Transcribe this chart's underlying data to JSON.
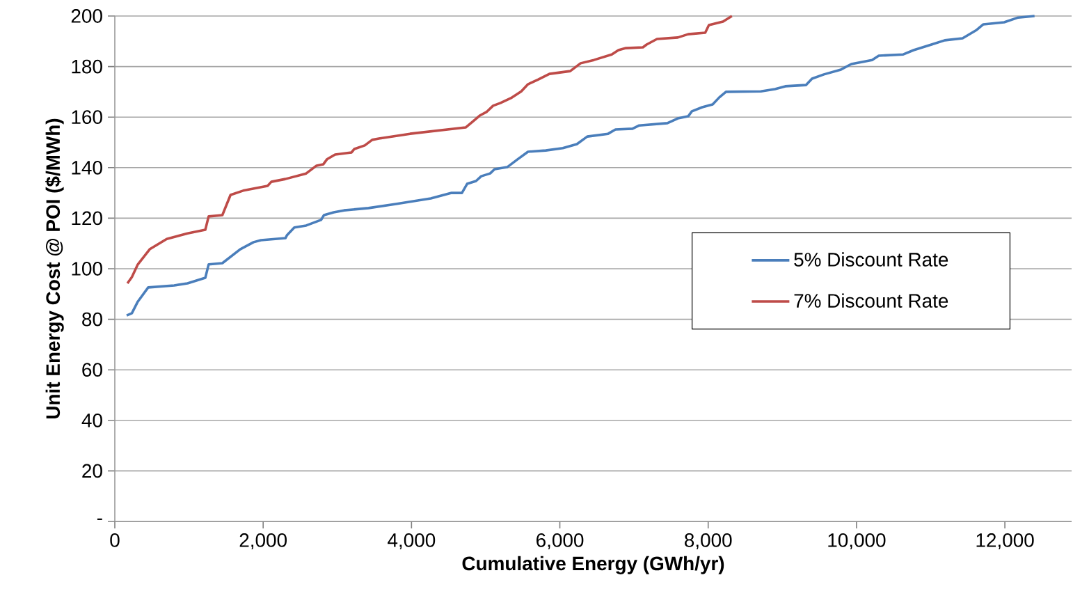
{
  "chart_data": {
    "type": "line",
    "xlabel": "Cumulative Energy (GWh/yr)",
    "ylabel": "Unit Energy Cost @ POI ($/MWh)",
    "xlim": [
      0,
      12900
    ],
    "ylim": [
      0,
      200
    ],
    "xticks": [
      {
        "value": 0,
        "label": "0"
      },
      {
        "value": 2000,
        "label": "2,000"
      },
      {
        "value": 4000,
        "label": "4,000"
      },
      {
        "value": 6000,
        "label": "6,000"
      },
      {
        "value": 8000,
        "label": "8,000"
      },
      {
        "value": 10000,
        "label": "10,000"
      },
      {
        "value": 12000,
        "label": "12,000"
      }
    ],
    "yticks": [
      {
        "value": 0,
        "label": "-"
      },
      20,
      40,
      60,
      80,
      100,
      120,
      140,
      160,
      180,
      200
    ],
    "grid": "y",
    "legend": "right",
    "marker": "none",
    "line_style": "solid",
    "series": [
      {
        "name": "5% Discount Rate",
        "color": "#4a7ebb",
        "x": [
          160,
          230,
          310,
          450,
          800,
          980,
          1220,
          1265,
          1450,
          1690,
          1870,
          1970,
          2300,
          2320,
          2420,
          2580,
          2780,
          2820,
          2950,
          3090,
          3420,
          3790,
          4260,
          4540,
          4680,
          4750,
          4870,
          4940,
          5060,
          5120,
          5290,
          5430,
          5570,
          5810,
          6040,
          6230,
          6370,
          6650,
          6750,
          6980,
          7070,
          7450,
          7590,
          7730,
          7780,
          7920,
          8060,
          8150,
          8240,
          8710,
          8900,
          9040,
          9320,
          9400,
          9560,
          9790,
          9930,
          10210,
          10300,
          10630,
          10770,
          11010,
          11190,
          11430,
          11620,
          11710,
          11990,
          12180,
          12400
        ],
        "values": [
          81.5,
          82.4,
          87,
          92.6,
          93.4,
          94.2,
          96.4,
          101.7,
          102.2,
          107.7,
          110.5,
          111.3,
          112.1,
          113.2,
          116.3,
          117.1,
          119.3,
          121.2,
          122.3,
          123.1,
          124,
          125.6,
          127.8,
          130,
          130,
          133.6,
          134.7,
          136.6,
          137.7,
          139.4,
          140.2,
          143.3,
          146.3,
          146.8,
          147.7,
          149.3,
          152.3,
          153.4,
          155.1,
          155.4,
          156.7,
          157.6,
          159.5,
          160.3,
          162.3,
          163.9,
          165,
          167.8,
          170,
          170.2,
          171.1,
          172.2,
          172.7,
          175.2,
          176.9,
          178.8,
          181,
          182.6,
          184.3,
          184.8,
          186.5,
          188.7,
          190.4,
          191.2,
          194.5,
          196.7,
          197.5,
          199.4,
          200
        ]
      },
      {
        "name": "7% Discount Rate",
        "color": "#be4b48",
        "x": [
          170,
          230,
          310,
          470,
          700,
          980,
          1220,
          1265,
          1450,
          1560,
          1730,
          2060,
          2110,
          2300,
          2580,
          2720,
          2810,
          2860,
          2970,
          3190,
          3230,
          3370,
          3470,
          3560,
          3980,
          4730,
          4820,
          4920,
          5010,
          5100,
          5200,
          5340,
          5480,
          5570,
          5710,
          5860,
          6140,
          6280,
          6460,
          6700,
          6790,
          6890,
          7120,
          7170,
          7310,
          7590,
          7730,
          7960,
          8010,
          8200,
          8320
        ],
        "values": [
          94.2,
          96.7,
          101.7,
          107.7,
          111.8,
          114,
          115.4,
          120.7,
          121.2,
          129.2,
          130.9,
          132.8,
          134.4,
          135.5,
          137.7,
          140.8,
          141.3,
          143.3,
          145.2,
          146,
          147.4,
          148.8,
          151,
          151.5,
          153.4,
          155.9,
          158.1,
          160.6,
          162,
          164.5,
          165.6,
          167.5,
          170.2,
          173,
          174.9,
          177.1,
          178.2,
          181.3,
          182.6,
          184.8,
          186.5,
          187.3,
          187.6,
          188.7,
          190.9,
          191.5,
          192.8,
          193.4,
          196.4,
          197.8,
          200
        ]
      }
    ]
  }
}
